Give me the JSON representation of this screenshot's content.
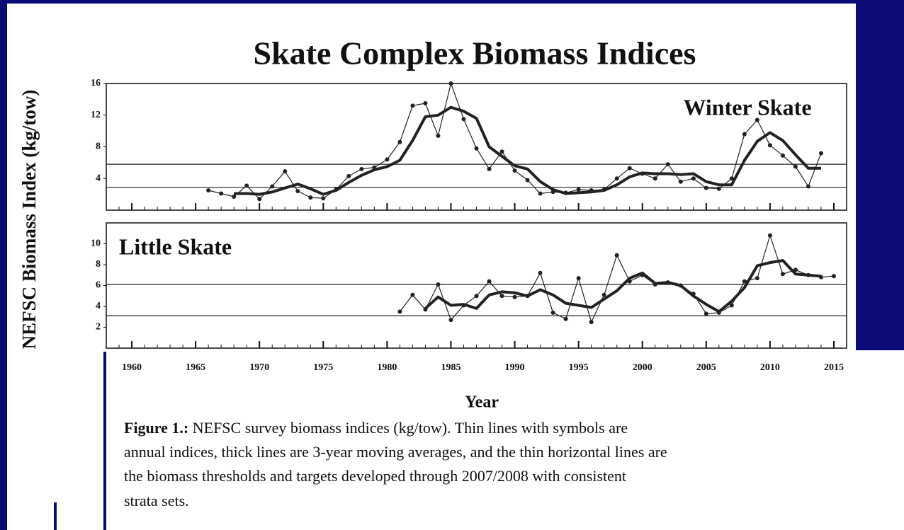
{
  "title": "Skate Complex Biomass Indices",
  "ylabel": "NEFSC Biomass Index (kg/tow)",
  "xlabel": "Year",
  "xticks": [
    1960,
    1965,
    1970,
    1975,
    1980,
    1985,
    1990,
    1995,
    2000,
    2005,
    2010,
    2015
  ],
  "xminor_ticks": [
    1959,
    1960,
    1961,
    1962,
    1963,
    1964,
    1965,
    1966,
    1967,
    1968,
    1969,
    1970,
    1971,
    1972,
    1973,
    1974,
    1975,
    1976,
    1977,
    1978,
    1979,
    1980,
    1981,
    1982,
    1983,
    1984,
    1985,
    1986,
    1987,
    1988,
    1989,
    1990,
    1991,
    1992,
    1993,
    1994,
    1995,
    1996,
    1997,
    1998,
    1999,
    2000,
    2001,
    2002,
    2003,
    2004,
    2005,
    2006,
    2007,
    2008,
    2009,
    2010,
    2011,
    2012,
    2013,
    2014,
    2015,
    2016
  ],
  "caption": {
    "label": "Figure 1.:",
    "lines": [
      " NEFSC survey biomass indices (kg/tow).  Thin lines with symbols are",
      "annual indices, thick lines are 3-year moving averages, and the thin horizontal lines are",
      "the biomass thresholds and targets developed through 2007/2008 with consistent",
      "strata sets."
    ]
  },
  "chart_data": [
    {
      "type": "line",
      "title": "Winter Skate",
      "xlim": [
        1958,
        2016
      ],
      "ylim": [
        0,
        16
      ],
      "yticks": [
        4,
        8,
        12,
        16
      ],
      "reference_lines": [
        5.8,
        2.9
      ],
      "series": [
        {
          "color": "#222222",
          "line_width": 1.2,
          "markers": true,
          "x": [
            1966,
            1967,
            1968,
            1969,
            1970,
            1971,
            1972,
            1973,
            1974,
            1975,
            1976,
            1977,
            1978,
            1979,
            1980,
            1981,
            1982,
            1983,
            1984,
            1985,
            1986,
            1987,
            1988,
            1989,
            1990,
            1991,
            1992,
            1993,
            1994,
            1995,
            1996,
            1997,
            1998,
            1999,
            2000,
            2001,
            2002,
            2003,
            2004,
            2005,
            2006,
            2007,
            2008,
            2009,
            2010,
            2011,
            2012,
            2013,
            2014
          ],
          "values": [
            2.5,
            2.1,
            1.7,
            3.1,
            1.4,
            3.0,
            4.9,
            2.4,
            1.6,
            1.5,
            2.6,
            4.3,
            5.2,
            5.4,
            6.4,
            8.6,
            13.2,
            13.5,
            9.4,
            16,
            11.5,
            7.8,
            5.2,
            7.4,
            5.0,
            3.8,
            2.1,
            2.3,
            2.2,
            2.6,
            2.5,
            2.6,
            4.0,
            5.3,
            4.6,
            4.0,
            5.8,
            3.6,
            4.0,
            2.8,
            2.7,
            4.0,
            9.6,
            11.4,
            8.2,
            6.9,
            5.5,
            3.0,
            7.2
          ]
        },
        {
          "color": "#222222",
          "line_width": 4,
          "markers": false,
          "x": [
            1968,
            1969,
            1970,
            1971,
            1972,
            1973,
            1974,
            1975,
            1976,
            1977,
            1978,
            1979,
            1980,
            1981,
            1982,
            1983,
            1984,
            1985,
            1986,
            1987,
            1988,
            1989,
            1990,
            1991,
            1992,
            1993,
            1994,
            1995,
            1996,
            1997,
            1998,
            1999,
            2000,
            2001,
            2002,
            2003,
            2004,
            2005,
            2006,
            2007,
            2008,
            2009,
            2010,
            2011,
            2012,
            2013,
            2014
          ],
          "values": [
            2.1,
            2.1,
            2.0,
            2.3,
            2.8,
            3.3,
            2.7,
            2.0,
            2.5,
            3.5,
            4.4,
            5.1,
            5.5,
            6.3,
            8.8,
            11.8,
            12.0,
            13.0,
            12.5,
            11.6,
            8.0,
            6.8,
            5.6,
            5.2,
            3.6,
            2.6,
            2.1,
            2.2,
            2.3,
            2.5,
            3.2,
            4.2,
            4.7,
            4.6,
            4.6,
            4.5,
            4.6,
            3.6,
            3.2,
            3.2,
            6.3,
            8.7,
            9.8,
            8.8,
            7.0,
            5.3,
            5.3
          ]
        }
      ]
    },
    {
      "type": "line",
      "title": "Little Skate",
      "xlim": [
        1958,
        2016
      ],
      "ylim": [
        0,
        12
      ],
      "yticks": [
        2,
        4,
        6,
        8,
        10
      ],
      "reference_lines": [
        6.1,
        3.1
      ],
      "series": [
        {
          "color": "#222222",
          "line_width": 1.2,
          "markers": true,
          "x": [
            1981,
            1982,
            1983,
            1984,
            1985,
            1986,
            1987,
            1988,
            1989,
            1990,
            1991,
            1992,
            1993,
            1994,
            1995,
            1996,
            1997,
            1998,
            1999,
            2000,
            2001,
            2002,
            2003,
            2004,
            2005,
            2006,
            2007,
            2008,
            2009,
            2010,
            2011,
            2012,
            2013,
            2014,
            2015
          ],
          "values": [
            3.5,
            5.1,
            3.7,
            6.1,
            2.7,
            4.1,
            5.0,
            6.4,
            5.0,
            4.9,
            5.0,
            7.2,
            3.4,
            2.8,
            6.7,
            2.5,
            5.1,
            8.9,
            6.4,
            7.0,
            6.1,
            6.3,
            6.0,
            5.2,
            3.3,
            3.4,
            4.1,
            6.4,
            6.7,
            10.8,
            7.1,
            7.5,
            7.0,
            6.8,
            6.9
          ]
        },
        {
          "color": "#222222",
          "line_width": 4,
          "markers": false,
          "x": [
            1983,
            1984,
            1985,
            1986,
            1987,
            1988,
            1989,
            1990,
            1991,
            1992,
            1993,
            1994,
            1995,
            1996,
            1997,
            1998,
            1999,
            2000,
            2001,
            2002,
            2003,
            2004,
            2005,
            2006,
            2007,
            2008,
            2009,
            2010,
            2011,
            2012,
            2013,
            2014
          ],
          "values": [
            3.8,
            4.9,
            4.1,
            4.2,
            3.8,
            5.1,
            5.4,
            5.3,
            5.0,
            5.6,
            5.1,
            4.3,
            4.1,
            3.9,
            4.7,
            5.5,
            6.7,
            7.2,
            6.2,
            6.3,
            6.0,
            5.0,
            4.2,
            3.5,
            4.5,
            5.8,
            7.9,
            8.2,
            8.4,
            7.1,
            7.0,
            6.9
          ]
        }
      ]
    }
  ]
}
